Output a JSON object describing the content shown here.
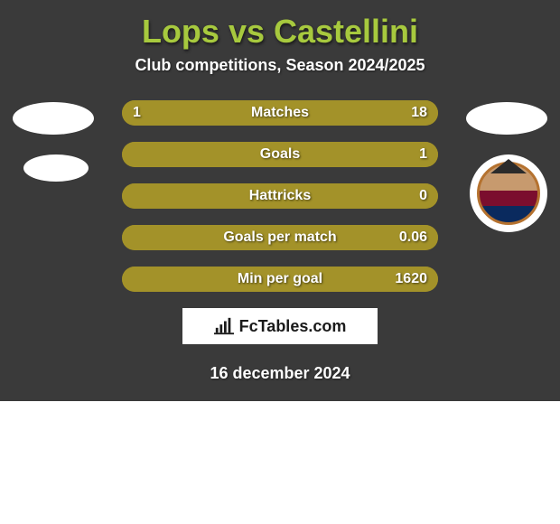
{
  "meta": {
    "background_color": "#3a3a3a",
    "accent_color": "#a39229",
    "title_color": "#a7c93e"
  },
  "title": "Lops vs Castellini",
  "subtitle": "Club competitions, Season 2024/2025",
  "date": "16 december 2024",
  "footer_brand": "FcTables.com",
  "rows": [
    {
      "label": "Matches",
      "left": "1",
      "right": "18",
      "left_pct": 5,
      "right_pct": 95
    },
    {
      "label": "Goals",
      "left": "",
      "right": "1",
      "left_pct": 0,
      "right_pct": 100
    },
    {
      "label": "Hattricks",
      "left": "",
      "right": "0",
      "left_pct": 0,
      "right_pct": 100
    },
    {
      "label": "Goals per match",
      "left": "",
      "right": "0.06",
      "left_pct": 0,
      "right_pct": 100
    },
    {
      "label": "Min per goal",
      "left": "",
      "right": "1620",
      "left_pct": 0,
      "right_pct": 100
    }
  ]
}
